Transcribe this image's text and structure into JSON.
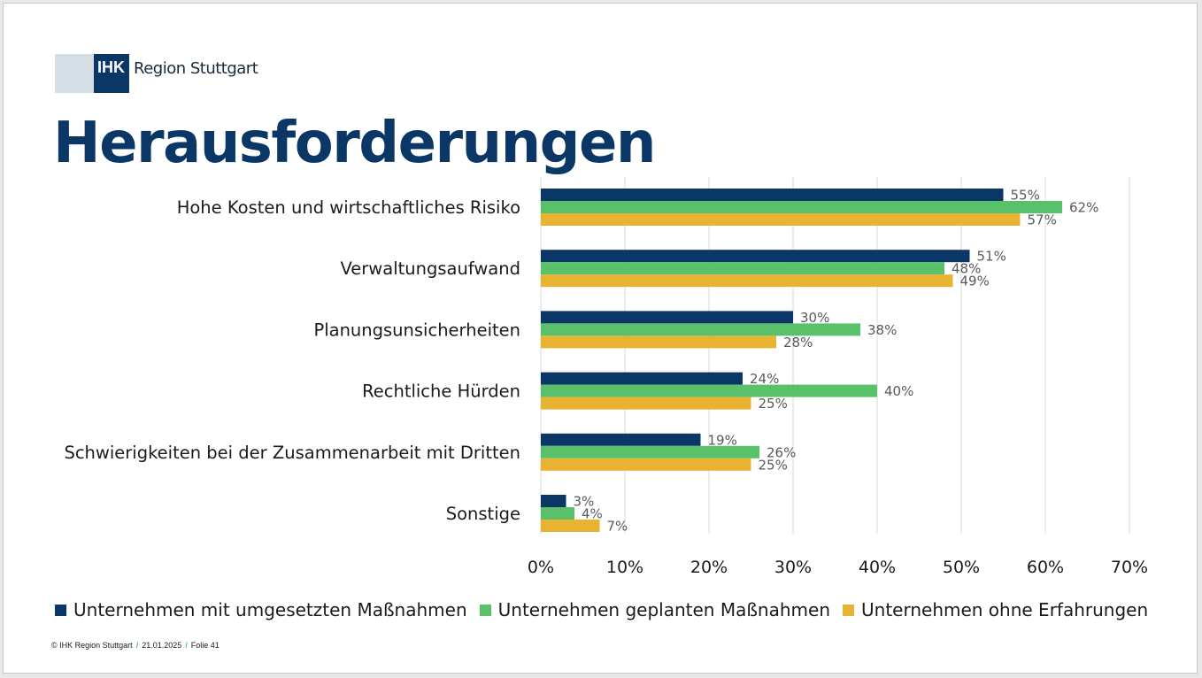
{
  "logo": {
    "abbr": "IHK",
    "name": "Region Stuttgart"
  },
  "title": "Herausforderungen",
  "footer": {
    "copyright": "© IHK Region Stuttgart",
    "date": "21.01.2025",
    "slide": "Folie 41"
  },
  "colors": {
    "series_1": "#0a3766",
    "series_2": "#59c16a",
    "series_3": "#e8b330",
    "title": "#0a3766",
    "grid": "#d9d9d9",
    "label": "#595959"
  },
  "chart_data": {
    "type": "bar",
    "orientation": "horizontal",
    "categories": [
      "Hohe Kosten und wirtschaftliches Risiko",
      "Verwaltungsaufwand",
      "Planungsunsicherheiten",
      "Rechtliche Hürden",
      "Schwierigkeiten bei der Zusammenarbeit mit Dritten",
      "Sonstige"
    ],
    "series": [
      {
        "name": "Unternehmen mit umgesetzten Maßnahmen",
        "values": [
          55,
          51,
          30,
          24,
          19,
          3
        ]
      },
      {
        "name": "Unternehmen geplanten Maßnahmen",
        "values": [
          62,
          48,
          38,
          40,
          26,
          4
        ]
      },
      {
        "name": "Unternehmen ohne Erfahrungen",
        "values": [
          57,
          49,
          28,
          25,
          25,
          7
        ]
      }
    ],
    "xlim": [
      0,
      70
    ],
    "xticks": [
      "0%",
      "10%",
      "20%",
      "30%",
      "40%",
      "50%",
      "60%",
      "70%"
    ],
    "value_suffix": "%",
    "grid": true,
    "legend_position": "bottom"
  }
}
